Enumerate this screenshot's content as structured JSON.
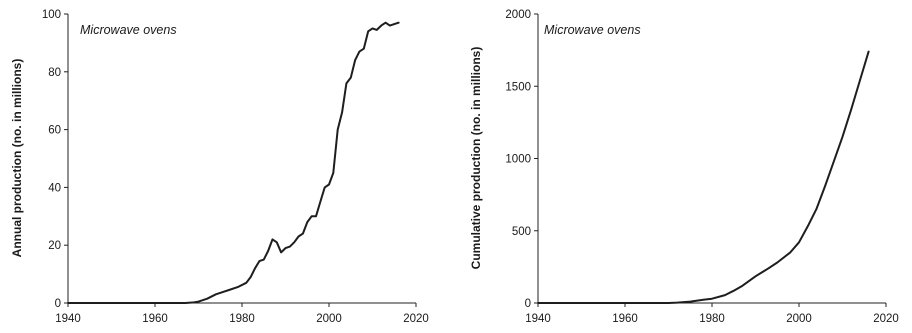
{
  "chart_data": [
    {
      "type": "line",
      "annotation": "Microwave ovens",
      "title": "",
      "xlabel": "",
      "ylabel": "Annual production (no. in millions)",
      "xlim": [
        1940,
        2020
      ],
      "ylim": [
        0,
        100
      ],
      "x_ticks": [
        1940,
        1960,
        1980,
        2000,
        2020
      ],
      "y_ticks": [
        0,
        20,
        40,
        60,
        80,
        100
      ],
      "grid": false,
      "legend": "none",
      "series": [
        {
          "x": [
            1967,
            1969,
            1970,
            1972,
            1974,
            1976,
            1977,
            1979,
            1981,
            1982,
            1983,
            1984,
            1985,
            1986,
            1987,
            1988,
            1989,
            1990,
            1991,
            1992,
            1993,
            1994,
            1995,
            1996,
            1997,
            1998,
            1999,
            2000,
            2001,
            2002,
            2003,
            2004,
            2005,
            2006,
            2007,
            2008,
            2009,
            2010,
            2011,
            2012,
            2013,
            2014,
            2015,
            2016
          ],
          "values": [
            0,
            0.2,
            0.5,
            1.5,
            3,
            4,
            4.5,
            5.5,
            7,
            9,
            12,
            14.5,
            15,
            18,
            22,
            21,
            17.5,
            19,
            19.5,
            21,
            23,
            24,
            28,
            30,
            30,
            35,
            40,
            41,
            45,
            60,
            66,
            76,
            78,
            84,
            87,
            88,
            94,
            95,
            94.5,
            96,
            97,
            96,
            96.5,
            97
          ]
        }
      ]
    },
    {
      "type": "line",
      "annotation": "Microwave ovens",
      "title": "",
      "xlabel": "",
      "ylabel": "Cumulative production (no. in millions)",
      "xlim": [
        1940,
        2020
      ],
      "ylim": [
        0,
        2000
      ],
      "x_ticks": [
        1940,
        1960,
        1980,
        2000,
        2020
      ],
      "y_ticks": [
        0,
        500,
        1000,
        1500,
        2000
      ],
      "grid": false,
      "legend": "none",
      "series": [
        {
          "x": [
            1970,
            1972,
            1975,
            1978,
            1980,
            1983,
            1985,
            1987,
            1990,
            1993,
            1995,
            1998,
            2000,
            2002,
            2004,
            2006,
            2008,
            2010,
            2012,
            2014,
            2016
          ],
          "values": [
            0,
            3,
            10,
            22,
            30,
            55,
            85,
            120,
            185,
            240,
            280,
            350,
            420,
            530,
            650,
            810,
            980,
            1150,
            1340,
            1540,
            1740
          ]
        }
      ]
    }
  ]
}
